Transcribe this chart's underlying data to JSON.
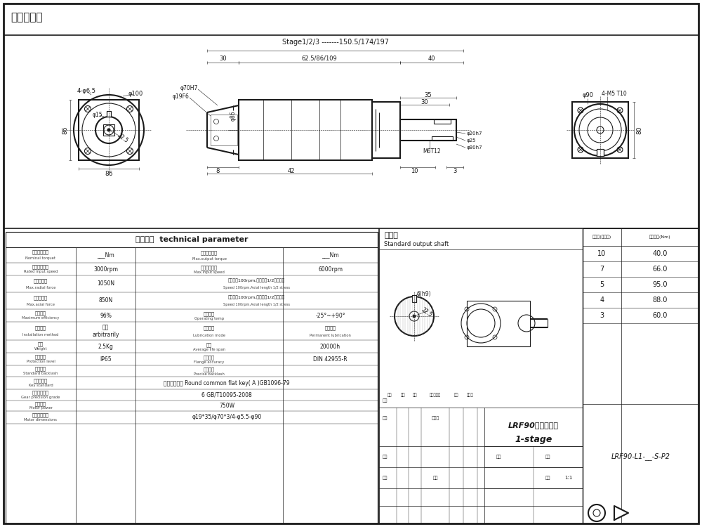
{
  "bg_color": "#ffffff",
  "line_color": "#1a1a1a",
  "title_text": "客户名称：",
  "stage_label": "Stage1/2/3 -------150.5/174/197",
  "dim_6286109": "62.5/86/109",
  "tech_title": "技术参数  technical parameter",
  "tech_rows": [
    [
      "额定输出转矩",
      "Nominal torquet",
      "___Nm",
      "最大输出转矩",
      "Max.output torque",
      "___Nm"
    ],
    [
      "额定输入转速",
      "Rated input speed",
      "3000rpm",
      "最大输入转速",
      "Max.input speed",
      "6000rpm"
    ],
    [
      "最大径向力",
      "Max.radial force",
      "1050N",
      "输出转速100rpm,输出轴长1/2处为受力",
      "Speed 100rpm,Axial length 1/2 stress",
      ""
    ],
    [
      "最大轴向力",
      "Max.axial force",
      "850N",
      "输出转速100rpm,输出轴长1/2处为受力",
      "Speed 100rpm,Axial length 1/2 stress",
      ""
    ],
    [
      "满载效率",
      "Maximum efficiency",
      "96%",
      "使用温度",
      "Operating temp",
      "-25°~+90°"
    ],
    [
      "安装方式",
      "Installation method",
      "任意\narbitrarily",
      "润滑方式",
      "Lubrication mode",
      "长效润滑\nPermanent lubrication"
    ],
    [
      "重量",
      "Weight",
      "2.5Kg",
      "寿命",
      "Average life span",
      "20000h"
    ],
    [
      "防护等级",
      "Protection level",
      "IP65",
      "法兰精度",
      "Flange accuracy",
      "DIN 42955-R"
    ],
    [
      "标准侧隙",
      "Standard backlash",
      "",
      "精密侧隙",
      "Precise backlash",
      ""
    ],
    [
      "键出键标准",
      "Key standard",
      "圆头普通平键 Round common flat key( A )GB1096-79",
      "",
      "",
      ""
    ],
    [
      "齿轮精度等级",
      "Gear precision grade",
      "6 GB/T10095-2008",
      "",
      "",
      ""
    ],
    [
      "电机功率",
      "Motor power",
      "750W",
      "",
      "",
      ""
    ],
    [
      "电机安装尺寸",
      "Motor dimensions",
      "φ19*35/φ70*3/4-φ5.5-φ90",
      "",
      "",
      ""
    ]
  ],
  "shaft_cn": "标准轴",
  "shaft_en": "Standard output shaft",
  "table_header": [
    "减速比(可选择)",
    "额定转矩(Nm)"
  ],
  "table_rows": [
    [
      "10",
      "40.0"
    ],
    [
      "7",
      "66.0"
    ],
    [
      "5",
      "95.0"
    ],
    [
      "4",
      "88.0"
    ],
    [
      "3",
      "60.0"
    ]
  ],
  "drawing_cn": "LRF90单级外形图",
  "drawing_en": "1-stage",
  "part_no": "LRF90-L1-__-S-P2",
  "stamp_rows": [
    [
      "标记",
      "处数",
      "分区",
      "更改文件号",
      "签名",
      "年月日"
    ],
    [
      "设计",
      "",
      "",
      "标准化",
      "",
      ""
    ],
    [
      "",
      "",
      "",
      "",
      "数量",
      "重量",
      "比例"
    ],
    [
      "审核",
      "",
      "",
      "",
      "",
      "",
      "1:1"
    ],
    [
      "工艺",
      "",
      "",
      "批准",
      "",
      ""
    ]
  ]
}
